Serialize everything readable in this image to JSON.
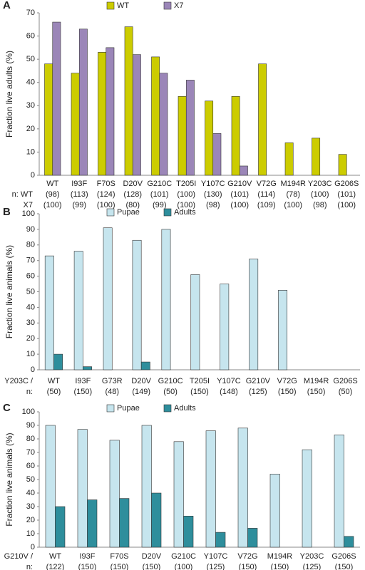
{
  "chart_data": [
    {
      "type": "bar",
      "panel_label": "A",
      "ylabel": "Fraction live adults (%)",
      "legend": "top",
      "categories": [
        "WT",
        "I93F",
        "F70S",
        "D20V",
        "G210C",
        "T205I",
        "Y107C",
        "G210V",
        "V72G",
        "M194R",
        "Y203C",
        "G206S"
      ],
      "series": [
        {
          "name": "WT",
          "color": "#cccc00",
          "values": [
            48,
            44,
            53,
            64,
            51,
            34,
            32,
            34,
            48,
            14,
            16,
            9
          ]
        },
        {
          "name": "X7",
          "color": "#9b86b8",
          "values": [
            66,
            63,
            55,
            52,
            44,
            41,
            18,
            4,
            null,
            null,
            null,
            null
          ]
        }
      ],
      "ylim": [
        0,
        70
      ],
      "yticks": [
        0,
        10,
        20,
        30,
        40,
        50,
        60,
        70
      ],
      "n_rows": [
        {
          "label": "n: WT",
          "values": [
            "(98)",
            "(113)",
            "(124)",
            "(128)",
            "(101)",
            "(100)",
            "(130)",
            "(101)",
            "(114)",
            "(78)",
            "(100)",
            "(101)"
          ]
        },
        {
          "label": "X7",
          "values": [
            "(100)",
            "(99)",
            "(100)",
            "(80)",
            "(99)",
            "(100)",
            "(98)",
            "(100)",
            "(109)",
            "(100)",
            "(98)",
            "(100)"
          ]
        }
      ]
    },
    {
      "type": "bar",
      "panel_label": "B",
      "ylabel": "Fraction live animals (%)",
      "legend": "top",
      "category_prefix": "Y203C /",
      "categories": [
        "WT",
        "I93F",
        "G73R",
        "D20V",
        "G210C",
        "T205I",
        "Y107C",
        "G210V",
        "V72G",
        "M194R",
        "G206S"
      ],
      "series": [
        {
          "name": "Pupae",
          "color": "#c6e5ee",
          "values": [
            73,
            76,
            91,
            83,
            90,
            61,
            55,
            71,
            51,
            0,
            0
          ]
        },
        {
          "name": "Adults",
          "color": "#2e8e9c",
          "values": [
            10,
            2,
            0,
            5,
            0,
            0,
            0,
            0,
            0,
            0,
            0
          ]
        }
      ],
      "ylim": [
        0,
        100
      ],
      "yticks": [
        0,
        10,
        20,
        30,
        40,
        50,
        60,
        70,
        80,
        90,
        100
      ],
      "n_rows": [
        {
          "label": "n:",
          "values": [
            "(50)",
            "(150)",
            "(48)",
            "(149)",
            "(50)",
            "(150)",
            "(148)",
            "(125)",
            "(150)",
            "(150)",
            "(50)"
          ]
        }
      ]
    },
    {
      "type": "bar",
      "panel_label": "C",
      "ylabel": "Fraction live animals (%)",
      "legend": "top",
      "category_prefix": "G210V /",
      "categories": [
        "WT",
        "I93F",
        "F70S",
        "D20V",
        "G210C",
        "Y107C",
        "V72G",
        "M194R",
        "Y203C",
        "G206S"
      ],
      "series": [
        {
          "name": "Pupae",
          "color": "#c6e5ee",
          "values": [
            90,
            87,
            79,
            90,
            78,
            86,
            88,
            54,
            72,
            83
          ]
        },
        {
          "name": "Adults",
          "color": "#2e8e9c",
          "values": [
            30,
            35,
            36,
            40,
            23,
            11,
            14,
            0,
            0,
            8
          ]
        }
      ],
      "ylim": [
        0,
        100
      ],
      "yticks": [
        0,
        10,
        20,
        30,
        40,
        50,
        60,
        70,
        80,
        90,
        100
      ],
      "n_rows": [
        {
          "label": "n:",
          "values": [
            "(122)",
            "(150)",
            "(150)",
            "(150)",
            "(100)",
            "(125)",
            "(150)",
            "(150)",
            "(125)",
            "(150)"
          ]
        }
      ]
    }
  ]
}
